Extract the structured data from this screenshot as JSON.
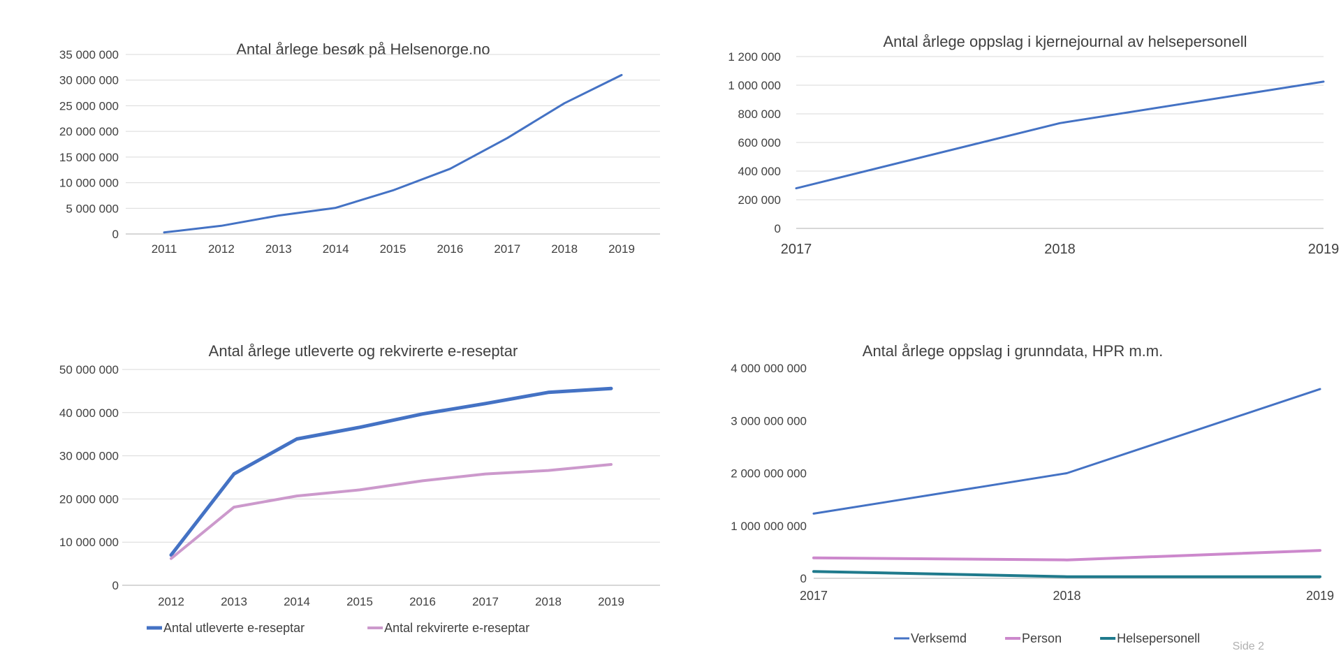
{
  "footer": {
    "page_label": "Side 2"
  },
  "chart_data": [
    {
      "id": "p1",
      "type": "line",
      "title": "Antal årlege besøk på Helsenorge.no",
      "x": [
        "2011",
        "2012",
        "2013",
        "2014",
        "2015",
        "2016",
        "2017",
        "2018",
        "2019"
      ],
      "ylim": [
        0,
        35000000
      ],
      "yticks": [
        0,
        5000000,
        10000000,
        15000000,
        20000000,
        25000000,
        30000000,
        35000000
      ],
      "ytick_labels": [
        "0",
        "5 000 000",
        "10 000 000",
        "15 000 000",
        "20 000 000",
        "25 000 000",
        "30 000 000",
        "35 000 000"
      ],
      "grid": true,
      "series": [
        {
          "values": [
            300000,
            1600000,
            3600000,
            5100000,
            8500000,
            12700000,
            18700000,
            25500000,
            31000000
          ],
          "color": "#4472c4",
          "width": 3
        }
      ]
    },
    {
      "id": "p2",
      "type": "line",
      "title": "Antal årlege oppslag i kjernejournal av helsepersonell",
      "x": [
        "2017",
        "2018",
        "2019"
      ],
      "ylim": [
        0,
        1200000
      ],
      "yticks": [
        0,
        200000,
        400000,
        600000,
        800000,
        1000000,
        1200000
      ],
      "ytick_labels": [
        "0",
        "200 000",
        "400 000",
        "600 000",
        "800 000",
        "1 000 000",
        "1 200 000"
      ],
      "grid": true,
      "series": [
        {
          "values": [
            280000,
            735000,
            1025000
          ],
          "color": "#4472c4",
          "width": 3
        }
      ]
    },
    {
      "id": "p3",
      "type": "line",
      "title": "Antal årlege utleverte og rekvirerte e-reseptar",
      "x": [
        "2012",
        "2013",
        "2014",
        "2015",
        "2016",
        "2017",
        "2018",
        "2019"
      ],
      "ylim": [
        0,
        50000000
      ],
      "yticks": [
        0,
        10000000,
        20000000,
        30000000,
        40000000,
        50000000
      ],
      "ytick_labels": [
        "0",
        "10 000 000",
        "20 000 000",
        "30 000 000",
        "40 000 000",
        "50 000 000"
      ],
      "grid": true,
      "legend": "bottom",
      "series": [
        {
          "name": "Antal utleverte e-reseptar",
          "values": [
            7000000,
            25800000,
            33900000,
            36600000,
            39700000,
            42100000,
            44700000,
            45600000
          ],
          "color": "#4472c4",
          "width": 5
        },
        {
          "name": "Antal rekvirerte e-reseptar",
          "values": [
            6200000,
            18100000,
            20700000,
            22100000,
            24200000,
            25800000,
            26600000,
            28000000
          ],
          "color": "#cc99cc",
          "width": 4
        }
      ]
    },
    {
      "id": "p4",
      "type": "line",
      "title": "Antal årlege oppslag i grunndata, HPR m.m.",
      "x": [
        "2017",
        "2018",
        "2019"
      ],
      "ylim": [
        0,
        4000000000
      ],
      "yticks": [
        0,
        1000000000,
        2000000000,
        3000000000,
        4000000000
      ],
      "ytick_labels": [
        "0",
        "1 000 000 000",
        "2 000 000 000",
        "3 000 000 000",
        "4 000 000 000"
      ],
      "grid": false,
      "legend": "bottom",
      "series": [
        {
          "name": "Verksemd",
          "values": [
            1230000000,
            2000000000,
            3600000000
          ],
          "color": "#4472c4",
          "width": 3
        },
        {
          "name": "Person",
          "values": [
            390000000,
            350000000,
            530000000
          ],
          "color": "#cc88cc",
          "width": 4
        },
        {
          "name": "Helsepersonell",
          "values": [
            130000000,
            30000000,
            30000000
          ],
          "color": "#1f7a8c",
          "width": 4
        }
      ]
    }
  ]
}
